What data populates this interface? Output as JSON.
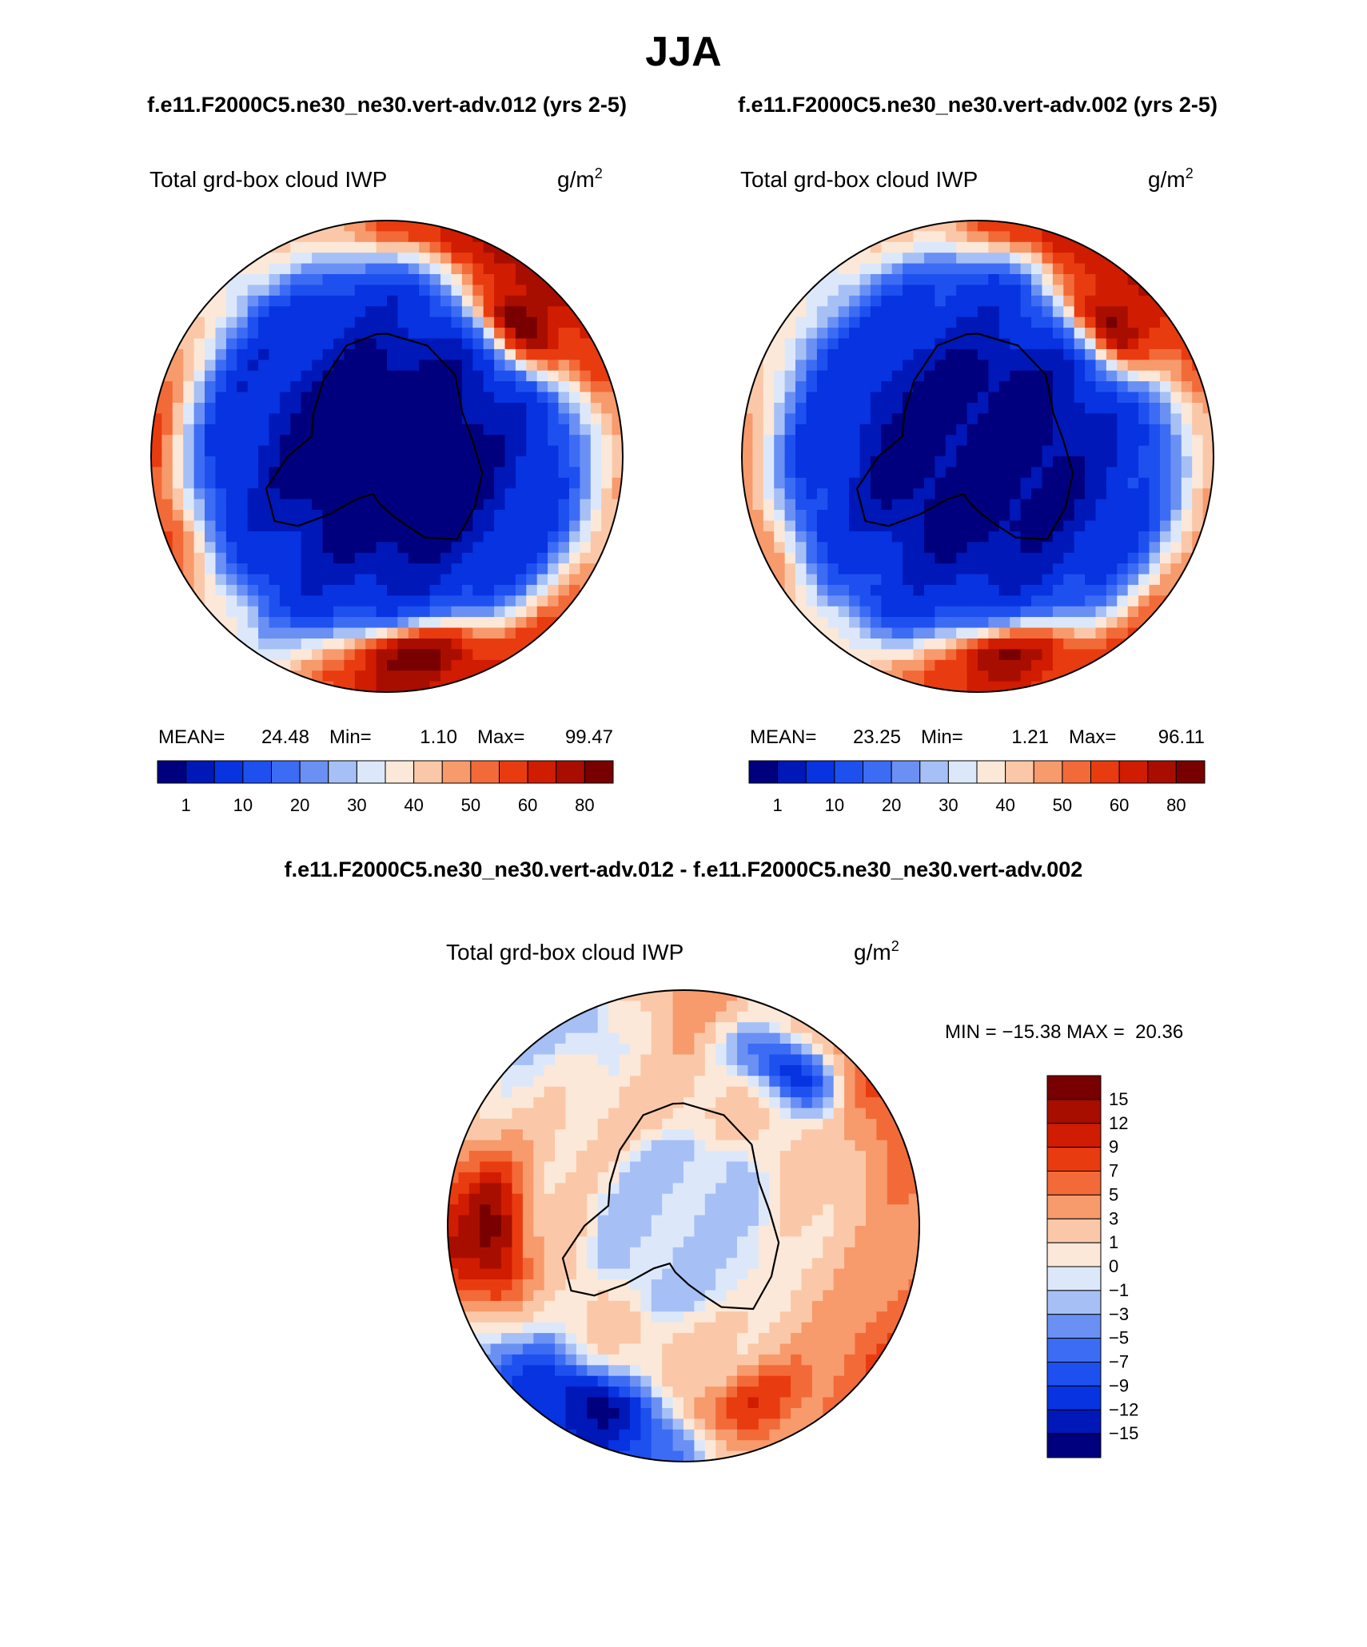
{
  "figure": {
    "title": "JJA",
    "panel_titles": [
      "f.e11.F2000C5.ne30_ne30.vert-adv.012 (yrs 2-5)",
      "f.e11.F2000C5.ne30_ne30.vert-adv.002 (yrs 2-5)"
    ],
    "diff_title": "f.e11.F2000C5.ne30_ne30.vert-adv.012 - f.e11.F2000C5.ne30_ne30.vert-adv.002"
  },
  "colors": {
    "abs_levels": [
      "#00007e",
      "#0018b8",
      "#0733e0",
      "#1e50f0",
      "#3c6cf4",
      "#6a90f4",
      "#a6c0f6",
      "#dce8fa",
      "#fbe8d8",
      "#fac8a8",
      "#f79a6c",
      "#f26a38",
      "#e83c10",
      "#d01c00",
      "#a80e00",
      "#780000"
    ],
    "diff_levels": [
      "#00007e",
      "#0018b8",
      "#0733e0",
      "#1e50f0",
      "#3c6cf4",
      "#6a90f4",
      "#a6c0f6",
      "#dce8fa",
      "#fbe8d8",
      "#fac8a8",
      "#f79a6c",
      "#f26a38",
      "#e83c10",
      "#d01c00",
      "#a80e00",
      "#780000"
    ]
  },
  "chart_data": [
    {
      "type": "heatmap",
      "projection": "south-polar-stereographic",
      "region": "Antarctica",
      "variable": "Total grd-box cloud IWP",
      "units_base": "g/m",
      "units_exp": "2",
      "stats": {
        "mean_label": "MEAN=",
        "mean": "24.48",
        "min_label": "Min=",
        "min": "1.10",
        "max_label": "Max=",
        "max": "99.47"
      },
      "colorbar_ticks": [
        "1",
        "10",
        "20",
        "30",
        "40",
        "50",
        "60",
        "80"
      ],
      "pattern": {
        "ring": [
          {
            "bearing": 15,
            "value": 75
          },
          {
            "bearing": 40,
            "value": 88
          },
          {
            "bearing": 75,
            "value": 55
          },
          {
            "bearing": 110,
            "value": 45
          },
          {
            "bearing": 145,
            "value": 66
          },
          {
            "bearing": 180,
            "value": 74
          },
          {
            "bearing": 215,
            "value": 35
          },
          {
            "bearing": 250,
            "value": 62
          },
          {
            "bearing": 285,
            "value": 58
          },
          {
            "bearing": 320,
            "value": 38
          },
          {
            "bearing": 350,
            "value": 52
          }
        ],
        "blobs": [
          {
            "bearing": 45,
            "dist": 0.8,
            "value": 96
          },
          {
            "bearing": 172,
            "dist": 0.86,
            "value": 99
          }
        ]
      }
    },
    {
      "type": "heatmap",
      "projection": "south-polar-stereographic",
      "region": "Antarctica",
      "variable": "Total grd-box cloud IWP",
      "units_base": "g/m",
      "units_exp": "2",
      "stats": {
        "mean_label": "MEAN=",
        "mean": "23.25",
        "min_label": "Min=",
        "min": "1.21",
        "max_label": "Max=",
        "max": "96.11"
      },
      "colorbar_ticks": [
        "1",
        "10",
        "20",
        "30",
        "40",
        "50",
        "60",
        "80"
      ],
      "pattern": {
        "ring": [
          {
            "bearing": 15,
            "value": 72
          },
          {
            "bearing": 40,
            "value": 82
          },
          {
            "bearing": 75,
            "value": 52
          },
          {
            "bearing": 110,
            "value": 48
          },
          {
            "bearing": 145,
            "value": 60
          },
          {
            "bearing": 180,
            "value": 68
          },
          {
            "bearing": 215,
            "value": 40
          },
          {
            "bearing": 250,
            "value": 55
          },
          {
            "bearing": 285,
            "value": 50
          },
          {
            "bearing": 320,
            "value": 40
          },
          {
            "bearing": 350,
            "value": 48
          }
        ],
        "blobs": [
          {
            "bearing": 45,
            "dist": 0.8,
            "value": 92
          },
          {
            "bearing": 172,
            "dist": 0.86,
            "value": 90
          }
        ]
      }
    },
    {
      "type": "heatmap",
      "projection": "south-polar-stereographic",
      "region": "Antarctica",
      "variable": "Total grd-box cloud IWP",
      "units_base": "g/m",
      "units_exp": "2",
      "stats_line": "MIN = −15.38 MAX =  20.36",
      "min": -15.38,
      "max": 20.36,
      "colorbar_ticks": [
        "15",
        "12",
        "9",
        "7",
        "5",
        "3",
        "1",
        "0",
        "−1",
        "−3",
        "−5",
        "−7",
        "−9",
        "−12",
        "−15"
      ],
      "pattern": {
        "ring": [
          {
            "bearing": 0,
            "value": 6
          },
          {
            "bearing": 25,
            "value": 2
          },
          {
            "bearing": 55,
            "value": 9
          },
          {
            "bearing": 90,
            "value": 5
          },
          {
            "bearing": 125,
            "value": 8
          },
          {
            "bearing": 160,
            "value": 5
          },
          {
            "bearing": 200,
            "value": -10
          },
          {
            "bearing": 230,
            "value": -7
          },
          {
            "bearing": 265,
            "value": 13
          },
          {
            "bearing": 300,
            "value": 2
          },
          {
            "bearing": 335,
            "value": -2
          }
        ],
        "blobs": [
          {
            "bearing": 268,
            "dist": 0.82,
            "value": 18
          },
          {
            "bearing": 205,
            "dist": 0.85,
            "value": -14
          },
          {
            "bearing": 160,
            "dist": 0.8,
            "value": 10
          },
          {
            "bearing": 35,
            "dist": 0.8,
            "value": -9
          }
        ]
      }
    }
  ]
}
